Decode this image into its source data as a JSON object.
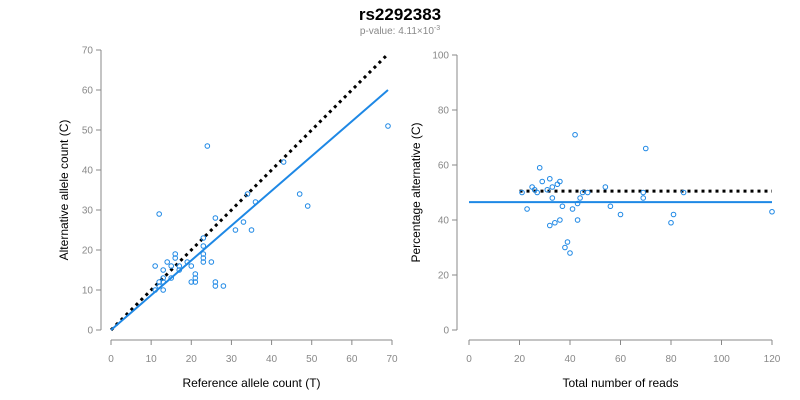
{
  "title": "rs2292383",
  "subtitle": {
    "prefix": "p-value: 4.11×10",
    "exponent": "-3"
  },
  "chart_data": [
    {
      "type": "scatter",
      "xlabel": "Reference allele count (T)",
      "ylabel": "Alternative allele count (C)",
      "xlim": [
        0,
        70
      ],
      "ylim": [
        0,
        70
      ],
      "xticks": [
        "0",
        "10",
        "20",
        "30",
        "40",
        "50",
        "60",
        "70"
      ],
      "yticks": [
        "0",
        "10",
        "20",
        "30",
        "40",
        "50",
        "60",
        "70"
      ],
      "grid": false,
      "point_color": "#1E88E5",
      "points": [
        [
          11,
          10
        ],
        [
          12,
          11
        ],
        [
          12,
          12
        ],
        [
          13,
          12
        ],
        [
          13,
          13
        ],
        [
          13,
          10
        ],
        [
          12,
          29
        ],
        [
          11,
          16
        ],
        [
          13,
          15
        ],
        [
          14,
          17
        ],
        [
          15,
          16
        ],
        [
          15,
          13
        ],
        [
          16,
          18
        ],
        [
          16,
          19
        ],
        [
          17,
          16
        ],
        [
          17,
          15
        ],
        [
          19,
          17
        ],
        [
          20,
          16
        ],
        [
          20,
          12
        ],
        [
          21,
          12
        ],
        [
          21,
          13
        ],
        [
          21,
          14
        ],
        [
          23,
          17
        ],
        [
          23,
          18
        ],
        [
          23,
          19
        ],
        [
          23,
          21
        ],
        [
          23,
          23
        ],
        [
          24,
          46
        ],
        [
          25,
          17
        ],
        [
          26,
          28
        ],
        [
          26,
          11
        ],
        [
          26,
          12
        ],
        [
          28,
          11
        ],
        [
          31,
          25
        ],
        [
          33,
          27
        ],
        [
          34,
          34
        ],
        [
          35,
          25
        ],
        [
          36,
          32
        ],
        [
          43,
          42
        ],
        [
          47,
          34
        ],
        [
          49,
          31
        ],
        [
          69,
          51
        ]
      ],
      "lines": [
        {
          "style": "dotted",
          "color": "#000000",
          "from": [
            0,
            0
          ],
          "to": [
            69,
            69
          ]
        },
        {
          "style": "solid",
          "color": "#1E88E5",
          "from": [
            0,
            0
          ],
          "to": [
            69,
            60
          ]
        }
      ]
    },
    {
      "type": "scatter",
      "xlabel": "Total number of reads",
      "ylabel": "Percentage alternative (C)",
      "xlim": [
        0,
        120
      ],
      "ylim": [
        0,
        100
      ],
      "xticks": [
        "0",
        "20",
        "40",
        "60",
        "80",
        "100",
        "120"
      ],
      "yticks": [
        "0",
        "20",
        "40",
        "60",
        "80",
        "100"
      ],
      "grid": false,
      "point_color": "#1E88E5",
      "points": [
        [
          21,
          50
        ],
        [
          23,
          44
        ],
        [
          25,
          52
        ],
        [
          26,
          51
        ],
        [
          27,
          50
        ],
        [
          28,
          59
        ],
        [
          29,
          54
        ],
        [
          31,
          51
        ],
        [
          32,
          55
        ],
        [
          32,
          38
        ],
        [
          33,
          48
        ],
        [
          33,
          52
        ],
        [
          34,
          39
        ],
        [
          35,
          53
        ],
        [
          36,
          54
        ],
        [
          36,
          40
        ],
        [
          37,
          45
        ],
        [
          38,
          30
        ],
        [
          39,
          32
        ],
        [
          40,
          28
        ],
        [
          41,
          44
        ],
        [
          42,
          71
        ],
        [
          43,
          46
        ],
        [
          43,
          40
        ],
        [
          44,
          48
        ],
        [
          45,
          50
        ],
        [
          47,
          50
        ],
        [
          54,
          52
        ],
        [
          56,
          45
        ],
        [
          60,
          42
        ],
        [
          69,
          50
        ],
        [
          69,
          48
        ],
        [
          70,
          66
        ],
        [
          80,
          39
        ],
        [
          81,
          42
        ],
        [
          85,
          50
        ],
        [
          120,
          43
        ]
      ],
      "lines": [
        {
          "style": "dotted",
          "color": "#000000",
          "from": [
            20,
            50.5
          ],
          "to": [
            120,
            50.5
          ]
        },
        {
          "style": "solid",
          "color": "#1E88E5",
          "from": [
            0,
            46.5
          ],
          "to": [
            120,
            46.5
          ]
        }
      ]
    }
  ]
}
